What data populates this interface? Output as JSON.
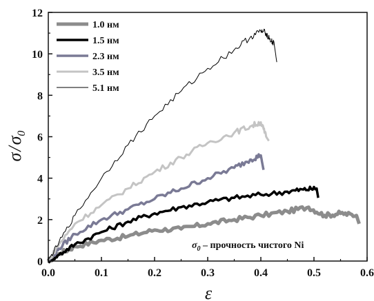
{
  "chart_data": {
    "type": "line",
    "xlabel": "ε",
    "ylabel_main": "σ",
    "ylabel_sep": "/",
    "ylabel_sub_base": "σ",
    "ylabel_sub": "0",
    "xlim": [
      0.0,
      0.6
    ],
    "ylim": [
      0,
      12
    ],
    "x_ticks": [
      "0.0",
      "0.1",
      "0.2",
      "0.3",
      "0.4",
      "0.5",
      "0.6"
    ],
    "y_ticks": [
      "0",
      "2",
      "4",
      "6",
      "8",
      "10",
      "12"
    ],
    "legend_position": "top-left",
    "note": {
      "symbol": "σ",
      "sub": "0",
      "text": " – прочность чистого Ni"
    },
    "series": [
      {
        "name": "1.0 нм",
        "color": "#8c8c8c",
        "stroke": 5,
        "points": [
          [
            0.0,
            0.0
          ],
          [
            0.02,
            0.35
          ],
          [
            0.05,
            0.7
          ],
          [
            0.1,
            1.0
          ],
          [
            0.15,
            1.2
          ],
          [
            0.2,
            1.5
          ],
          [
            0.25,
            1.55
          ],
          [
            0.3,
            1.8
          ],
          [
            0.35,
            2.0
          ],
          [
            0.4,
            2.2
          ],
          [
            0.45,
            2.4
          ],
          [
            0.49,
            2.6
          ],
          [
            0.52,
            2.2
          ],
          [
            0.55,
            2.3
          ],
          [
            0.58,
            2.2
          ],
          [
            0.585,
            1.8
          ]
        ]
      },
      {
        "name": "1.5 нм",
        "color": "#000000",
        "stroke": 3.5,
        "points": [
          [
            0.0,
            0.0
          ],
          [
            0.02,
            0.3
          ],
          [
            0.05,
            0.8
          ],
          [
            0.1,
            1.4
          ],
          [
            0.15,
            1.9
          ],
          [
            0.2,
            2.3
          ],
          [
            0.25,
            2.6
          ],
          [
            0.3,
            2.85
          ],
          [
            0.35,
            3.05
          ],
          [
            0.4,
            3.2
          ],
          [
            0.45,
            3.35
          ],
          [
            0.48,
            3.45
          ],
          [
            0.505,
            3.5
          ],
          [
            0.508,
            3.05
          ]
        ]
      },
      {
        "name": "2.3 нм",
        "color": "#7a7a95",
        "stroke": 3.5,
        "points": [
          [
            0.0,
            0.0
          ],
          [
            0.02,
            0.6
          ],
          [
            0.05,
            1.3
          ],
          [
            0.1,
            2.0
          ],
          [
            0.15,
            2.5
          ],
          [
            0.2,
            3.0
          ],
          [
            0.25,
            3.5
          ],
          [
            0.3,
            4.0
          ],
          [
            0.35,
            4.5
          ],
          [
            0.38,
            4.9
          ],
          [
            0.4,
            5.1
          ],
          [
            0.405,
            4.4
          ]
        ]
      },
      {
        "name": "3.5 нм",
        "color": "#c4c4c4",
        "stroke": 3,
        "points": [
          [
            0.0,
            0.0
          ],
          [
            0.02,
            0.8
          ],
          [
            0.05,
            1.8
          ],
          [
            0.1,
            2.7
          ],
          [
            0.15,
            3.5
          ],
          [
            0.2,
            4.3
          ],
          [
            0.25,
            5.0
          ],
          [
            0.3,
            5.7
          ],
          [
            0.35,
            6.2
          ],
          [
            0.38,
            6.5
          ],
          [
            0.4,
            6.7
          ],
          [
            0.41,
            6.0
          ],
          [
            0.415,
            5.8
          ]
        ]
      },
      {
        "name": "5.1 нм",
        "color": "#000000",
        "stroke": 1,
        "points": [
          [
            0.0,
            0.0
          ],
          [
            0.02,
            0.9
          ],
          [
            0.05,
            2.2
          ],
          [
            0.1,
            4.0
          ],
          [
            0.15,
            5.6
          ],
          [
            0.2,
            7.0
          ],
          [
            0.25,
            8.2
          ],
          [
            0.3,
            9.3
          ],
          [
            0.35,
            10.2
          ],
          [
            0.38,
            10.8
          ],
          [
            0.4,
            11.1
          ],
          [
            0.41,
            11.0
          ],
          [
            0.42,
            10.6
          ],
          [
            0.425,
            10.5
          ],
          [
            0.43,
            9.6
          ]
        ]
      }
    ]
  }
}
